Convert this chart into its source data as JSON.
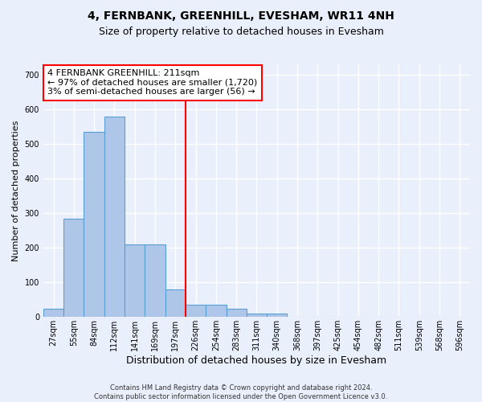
{
  "title": "4, FERNBANK, GREENHILL, EVESHAM, WR11 4NH",
  "subtitle": "Size of property relative to detached houses in Evesham",
  "xlabel": "Distribution of detached houses by size in Evesham",
  "ylabel": "Number of detached properties",
  "footer_line1": "Contains HM Land Registry data © Crown copyright and database right 2024.",
  "footer_line2": "Contains public sector information licensed under the Open Government Licence v3.0.",
  "bar_labels": [
    "27sqm",
    "55sqm",
    "84sqm",
    "112sqm",
    "141sqm",
    "169sqm",
    "197sqm",
    "226sqm",
    "254sqm",
    "283sqm",
    "311sqm",
    "340sqm",
    "368sqm",
    "397sqm",
    "425sqm",
    "454sqm",
    "482sqm",
    "511sqm",
    "539sqm",
    "568sqm",
    "596sqm"
  ],
  "bar_heights": [
    25,
    285,
    535,
    580,
    210,
    210,
    80,
    35,
    35,
    25,
    10,
    10,
    0,
    0,
    0,
    0,
    0,
    0,
    0,
    0,
    0
  ],
  "bar_color": "#aec6e8",
  "bar_edge_color": "#5a9fd4",
  "vline_x_index": 7,
  "vline_color": "red",
  "annotation_line1": "4 FERNBANK GREENHILL: 211sqm",
  "annotation_line2": "← 97% of detached houses are smaller (1,720)",
  "annotation_line3": "3% of semi-detached houses are larger (56) →",
  "annotation_box_color": "white",
  "annotation_box_edge_color": "red",
  "ylim": [
    0,
    730
  ],
  "yticks": [
    0,
    100,
    200,
    300,
    400,
    500,
    600,
    700
  ],
  "background_color": "#eaf0fb",
  "grid_color": "white",
  "title_fontsize": 10,
  "subtitle_fontsize": 9,
  "annotation_fontsize": 8,
  "ylabel_fontsize": 8,
  "xlabel_fontsize": 9,
  "tick_fontsize": 7,
  "footer_fontsize": 6
}
